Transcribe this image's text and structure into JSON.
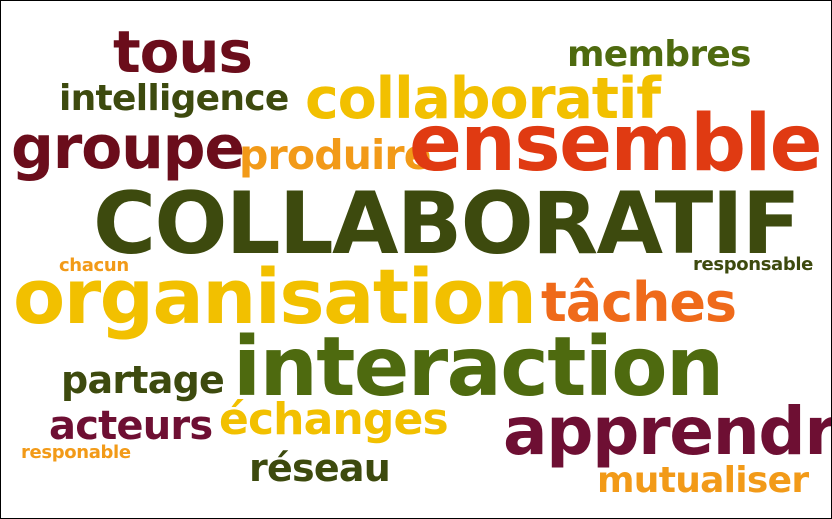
{
  "word_cloud": {
    "colors": {
      "dark_red": "#6b0d1b",
      "olive_green": "#4e6a0f",
      "dark_green": "#3d4a0e",
      "gold": "#f2c000",
      "orange_gold": "#f29a18",
      "red_orange": "#e03a12",
      "orange": "#ef6a1a",
      "wine": "#6e0f33"
    },
    "words": {
      "tous": "tous",
      "membres": "membres",
      "intelligence": "intelligence",
      "collaboratif": "collaboratif",
      "groupe": "groupe",
      "produire": "produire",
      "ensemble": "ensemble",
      "COLLABORATIF": "COLLABORATIF",
      "chacun": "chacun",
      "responsable": "responsable",
      "organisation": "organisation",
      "taches": "tâches",
      "interaction": "interaction",
      "partage": "partage",
      "acteurs": "acteurs",
      "echanges": "échanges",
      "apprendre": "apprendre",
      "responable": "responable",
      "reseau": "réseau",
      "mutualiser": "mutualiser"
    }
  }
}
